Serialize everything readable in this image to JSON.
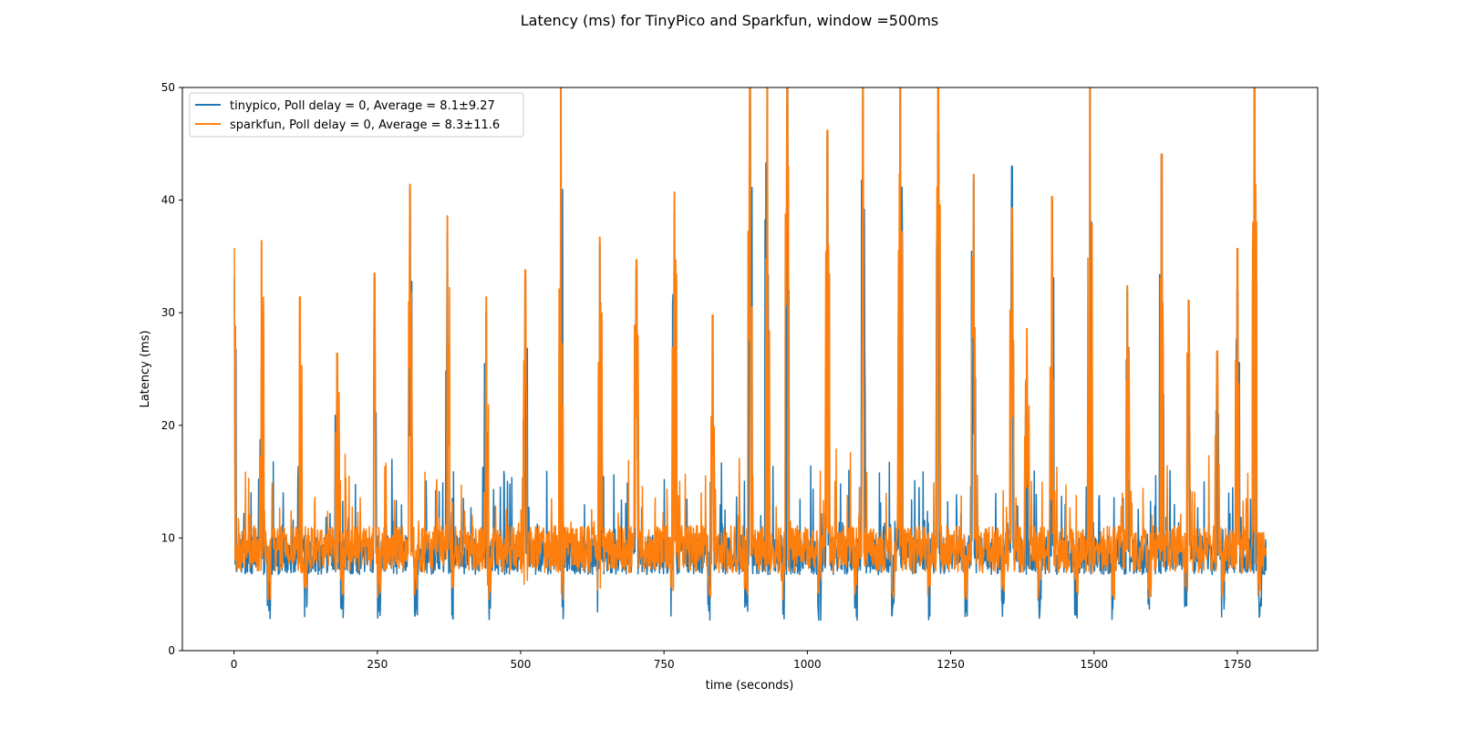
{
  "chart_data": {
    "type": "line",
    "title": "Latency (ms) for TinyPico and Sparkfun, window =500ms",
    "xlabel": "time (seconds)",
    "ylabel": "Latency (ms)",
    "xlim": [
      -90,
      1890
    ],
    "ylim": [
      0,
      50
    ],
    "xticks": [
      0,
      250,
      500,
      750,
      1000,
      1250,
      1500,
      1750
    ],
    "yticks": [
      0,
      10,
      20,
      30,
      40,
      50
    ],
    "grid": false,
    "legend_placement": "top-left",
    "series": [
      {
        "name": "tinypico, Poll delay = 0, Average = 8.1±9.27",
        "color": "#1f77b4",
        "x_range": [
          0,
          1800
        ],
        "baseline_mean": 8.1,
        "typical_band": [
          6,
          11
        ],
        "dip_value": 2.7,
        "dip_period_s": 64,
        "spike_times": [
          0,
          48,
          115,
          180,
          245,
          307,
          372,
          440,
          508,
          570,
          638,
          702,
          768,
          835,
          900,
          930,
          965,
          1035,
          1097,
          1162,
          1228,
          1290,
          1357,
          1383,
          1427,
          1493,
          1558,
          1618,
          1665,
          1715,
          1750,
          1780
        ],
        "spike_peaks": [
          33,
          25,
          20,
          24,
          33,
          41,
          37,
          30,
          33,
          50,
          36,
          34,
          39,
          21,
          50,
          50,
          50,
          46,
          50,
          50,
          46,
          42,
          43,
          26,
          40,
          50,
          32,
          44,
          26,
          26,
          32,
          50
        ]
      },
      {
        "name": "sparkfun, Poll delay = 0, Average = 8.3±11.6",
        "color": "#ff7f0e",
        "x_range": [
          0,
          1800
        ],
        "baseline_mean": 8.3,
        "typical_band": [
          6,
          12
        ],
        "dip_value": 4.5,
        "dip_period_s": 64,
        "spike_times": [
          0,
          48,
          115,
          180,
          245,
          307,
          372,
          440,
          508,
          570,
          638,
          702,
          768,
          835,
          900,
          930,
          965,
          1035,
          1097,
          1162,
          1228,
          1290,
          1357,
          1383,
          1427,
          1493,
          1558,
          1618,
          1665,
          1715,
          1750,
          1780
        ],
        "spike_peaks": [
          35.7,
          36.4,
          31.4,
          26.4,
          33.5,
          41.4,
          38.6,
          31.4,
          33.8,
          50,
          36.7,
          34.7,
          40.7,
          29.8,
          50,
          50,
          50,
          46.2,
          50,
          50,
          50,
          42.3,
          39.3,
          28.6,
          40.3,
          50,
          32.4,
          44.1,
          31.1,
          26.6,
          35.7,
          50
        ]
      }
    ]
  }
}
